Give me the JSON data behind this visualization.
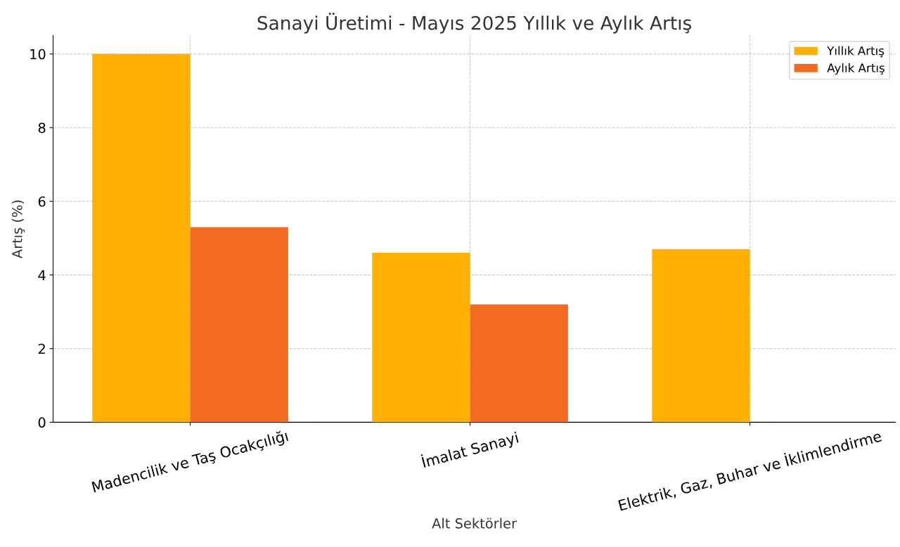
{
  "chart_data": {
    "type": "bar",
    "title": "Sanayi Üretimi - Mayıs 2025 Yıllık ve Aylık Artış",
    "xlabel": "Alt Sektörler",
    "ylabel": "Artış (%)",
    "categories": [
      "Madencilik ve Taş Ocakçılığı",
      "İmalat Sanayi",
      "Elektrik, Gaz, Buhar ve İklimlendirme"
    ],
    "series": [
      {
        "name": "Yıllık Artış",
        "color": "#ffb000",
        "values": [
          10.0,
          4.6,
          4.7
        ]
      },
      {
        "name": "Aylık Artış",
        "color": "#f26b21",
        "values": [
          5.3,
          3.2,
          null
        ]
      }
    ],
    "ylim": [
      0,
      10.5
    ],
    "yticks": [
      0,
      2,
      4,
      6,
      8,
      10
    ],
    "grid": true,
    "legend": "top right"
  }
}
